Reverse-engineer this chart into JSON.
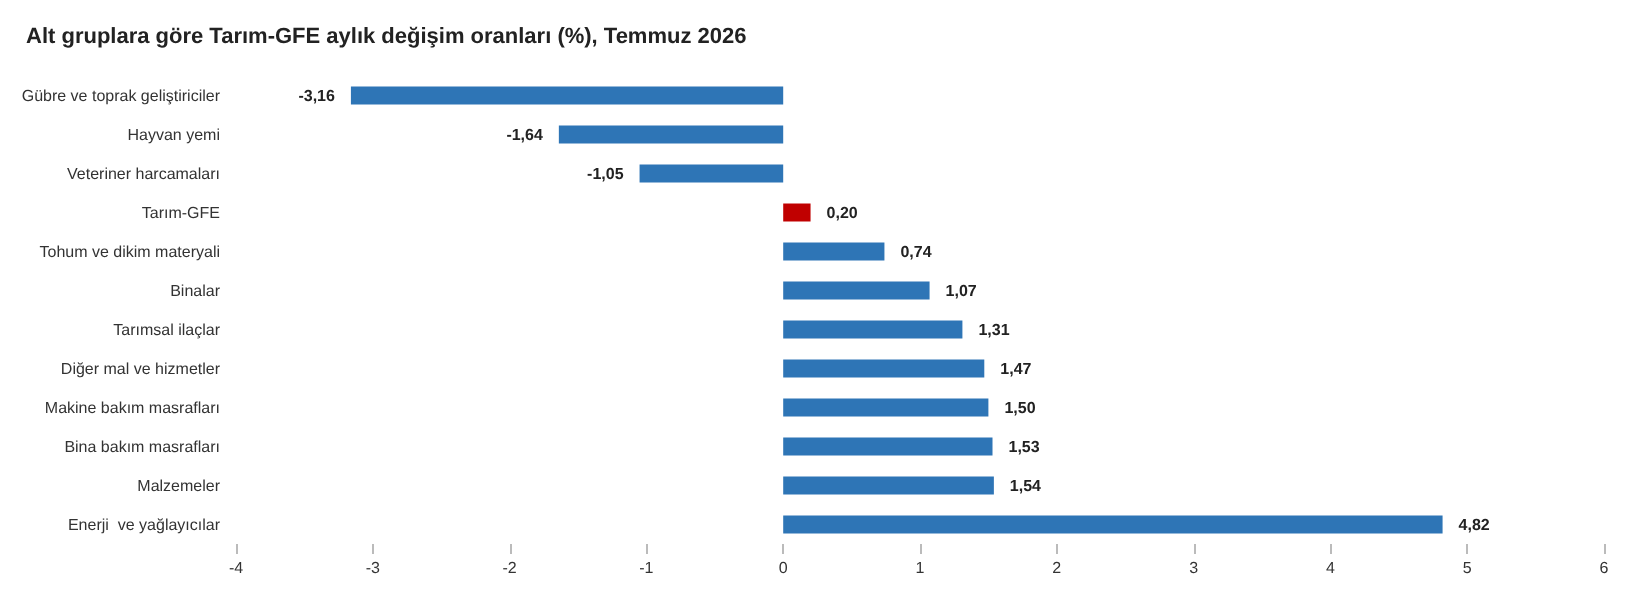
{
  "chart_data": {
    "type": "bar",
    "orientation": "horizontal",
    "title": "Alt gruplara göre Tarım-GFE aylık değişim oranları (%), Temmuz 2026",
    "categories": [
      "Gübre ve toprak geliştiriciler",
      "Hayvan yemi",
      "Veteriner harcamaları",
      "Tarım-GFE",
      "Tohum ve dikim materyali",
      "Binalar",
      "Tarımsal ilaçlar",
      "Diğer mal ve hizmetler",
      "Makine bakım masrafları",
      "Bina bakım masrafları",
      "Malzemeler",
      "Enerji  ve yağlayıcılar"
    ],
    "values": [
      -3.16,
      -1.64,
      -1.05,
      0.2,
      0.74,
      1.07,
      1.31,
      1.47,
      1.5,
      1.53,
      1.54,
      4.82
    ],
    "colors": [
      "#2e75b6",
      "#2e75b6",
      "#2e75b6",
      "#c00000",
      "#2e75b6",
      "#2e75b6",
      "#2e75b6",
      "#2e75b6",
      "#2e75b6",
      "#2e75b6",
      "#2e75b6",
      "#2e75b6"
    ],
    "value_labels": [
      "-3,16",
      "-1,64",
      "-1,05",
      "0,20",
      "0,74",
      "1,07",
      "1,31",
      "1,47",
      "1,50",
      "1,53",
      "1,54",
      "4,82"
    ],
    "xlim": [
      -4,
      6
    ],
    "xticks": [
      -4,
      -3,
      -2,
      -1,
      0,
      1,
      2,
      3,
      4,
      5,
      6
    ]
  }
}
